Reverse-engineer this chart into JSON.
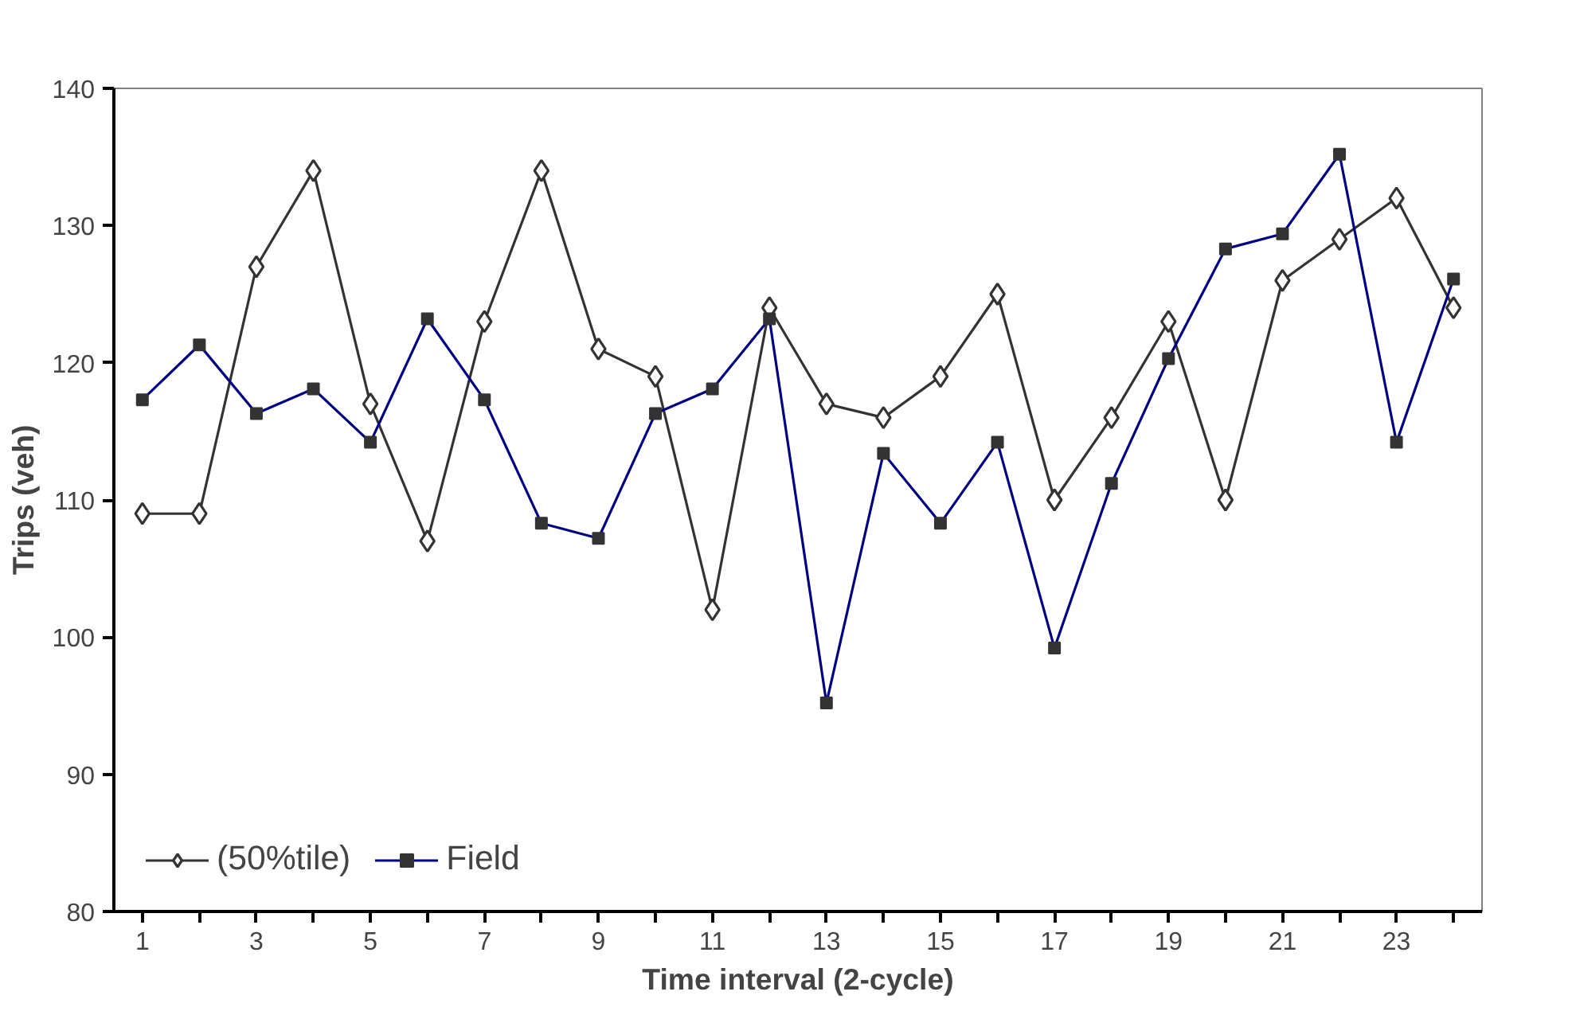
{
  "chart_data": {
    "type": "line",
    "xlabel": "Time interval (2-cycle)",
    "ylabel": "Trips (veh)",
    "x": [
      1,
      2,
      3,
      4,
      5,
      6,
      7,
      8,
      9,
      10,
      11,
      12,
      13,
      14,
      15,
      16,
      17,
      18,
      19,
      20,
      21,
      22,
      23,
      24
    ],
    "xlim": [
      0.5,
      24.5
    ],
    "xticks": [
      1,
      3,
      5,
      7,
      9,
      11,
      13,
      15,
      17,
      19,
      21,
      23
    ],
    "series": [
      {
        "name": "(50%tile)",
        "color": "#333333",
        "marker": "diamond",
        "values": [
          109,
          109,
          127,
          134,
          117,
          107,
          123,
          134,
          121,
          119,
          102,
          124,
          117,
          116,
          119,
          125,
          110,
          116,
          123,
          110,
          126,
          129,
          132,
          124
        ]
      },
      {
        "name": "Field",
        "color": "#000080",
        "marker": "square",
        "values": [
          117.3,
          121.3,
          116.3,
          118.1,
          114.2,
          123.2,
          117.3,
          108.3,
          107.2,
          116.3,
          118.1,
          123.2,
          95.2,
          113.4,
          108.3,
          114.2,
          99.2,
          111.2,
          120.3,
          128.3,
          129.4,
          135.2,
          114.2,
          126.1
        ]
      }
    ],
    "ylim": [
      80,
      140
    ],
    "yticks": [
      80,
      90,
      100,
      110,
      120,
      130,
      140
    ],
    "grid": false,
    "legend": "bottom left",
    "line_style": "solid"
  }
}
